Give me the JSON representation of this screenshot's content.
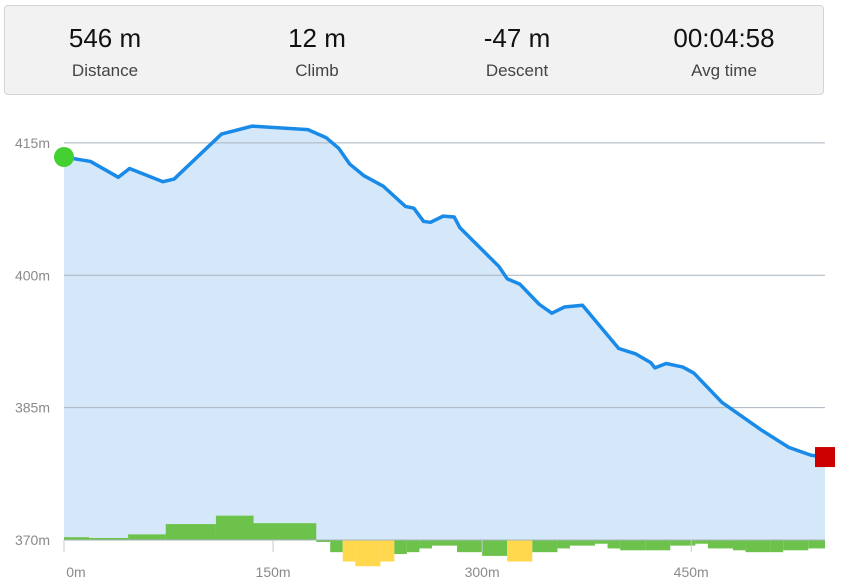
{
  "stats": [
    {
      "value": "546 m",
      "label": "Distance"
    },
    {
      "value": "12 m",
      "label": "Climb"
    },
    {
      "value": "-47 m",
      "label": "Descent"
    },
    {
      "value": "00:04:58",
      "label": "Avg time"
    }
  ],
  "chart_data": {
    "type": "area",
    "title": "",
    "xlabel": "",
    "ylabel": "",
    "xlim": [
      0,
      546
    ],
    "ylim": [
      370,
      418.5
    ],
    "x_ticks": [
      {
        "value": 0,
        "label": "0m"
      },
      {
        "value": 150,
        "label": "150m"
      },
      {
        "value": 300,
        "label": "300m"
      },
      {
        "value": 450,
        "label": "450m"
      }
    ],
    "y_ticks": [
      {
        "value": 415,
        "label": "415m"
      },
      {
        "value": 400,
        "label": "400m"
      },
      {
        "value": 385,
        "label": "385m"
      },
      {
        "value": 370,
        "label": "370m"
      }
    ],
    "grid": true,
    "series": [
      {
        "x": [
          0,
          19,
          39,
          47,
          71,
          79,
          113,
          135,
          175,
          188,
          197,
          205,
          215,
          229,
          245,
          251,
          258,
          263,
          272,
          280,
          284,
          312,
          318,
          327,
          341,
          350,
          359,
          372,
          398,
          410,
          421,
          424,
          432,
          444,
          452,
          472,
          500,
          520,
          536,
          546
        ],
        "y": [
          413.4,
          412.9,
          411.1,
          412.1,
          410.6,
          410.9,
          416.0,
          416.9,
          416.5,
          415.6,
          414.4,
          412.6,
          411.3,
          410.1,
          407.8,
          407.6,
          406.1,
          406.0,
          406.7,
          406.6,
          405.4,
          401.0,
          399.6,
          399.0,
          396.7,
          395.7,
          396.4,
          396.6,
          391.7,
          391.1,
          390.1,
          389.5,
          390.0,
          389.6,
          388.9,
          385.6,
          382.5,
          380.5,
          379.6,
          379.4
        ]
      }
    ],
    "start_marker_color": "#44d030",
    "end_marker_color": "#cc0000",
    "line_color": "#1a8ae8",
    "fill_color": "#d4e8fa",
    "slope_bars": [
      {
        "x0": 0,
        "x1": 18,
        "v": 0.3,
        "c": "green"
      },
      {
        "x0": 18,
        "x1": 46,
        "v": 0.2,
        "c": "green"
      },
      {
        "x0": 46,
        "x1": 73,
        "v": 0.6,
        "c": "green"
      },
      {
        "x0": 73,
        "x1": 109,
        "v": 1.7,
        "c": "green"
      },
      {
        "x0": 109,
        "x1": 136,
        "v": 2.6,
        "c": "green"
      },
      {
        "x0": 136,
        "x1": 181,
        "v": 1.8,
        "c": "green"
      },
      {
        "x0": 181,
        "x1": 191,
        "v": -0.2,
        "c": "green"
      },
      {
        "x0": 191,
        "x1": 200,
        "v": -1.3,
        "c": "green"
      },
      {
        "x0": 200,
        "x1": 209,
        "v": -2.3,
        "c": "yellow"
      },
      {
        "x0": 209,
        "x1": 227,
        "v": -2.8,
        "c": "yellow"
      },
      {
        "x0": 227,
        "x1": 237,
        "v": -2.3,
        "c": "yellow"
      },
      {
        "x0": 237,
        "x1": 246,
        "v": -1.5,
        "c": "green"
      },
      {
        "x0": 246,
        "x1": 255,
        "v": -1.3,
        "c": "green"
      },
      {
        "x0": 255,
        "x1": 264,
        "v": -0.9,
        "c": "green"
      },
      {
        "x0": 264,
        "x1": 282,
        "v": -0.6,
        "c": "green"
      },
      {
        "x0": 282,
        "x1": 300,
        "v": -1.3,
        "c": "green"
      },
      {
        "x0": 300,
        "x1": 318,
        "v": -1.7,
        "c": "green"
      },
      {
        "x0": 318,
        "x1": 336,
        "v": -2.3,
        "c": "yellow"
      },
      {
        "x0": 336,
        "x1": 354,
        "v": -1.3,
        "c": "green"
      },
      {
        "x0": 354,
        "x1": 363,
        "v": -0.9,
        "c": "green"
      },
      {
        "x0": 363,
        "x1": 381,
        "v": -0.6,
        "c": "green"
      },
      {
        "x0": 381,
        "x1": 390,
        "v": -0.4,
        "c": "green"
      },
      {
        "x0": 390,
        "x1": 399,
        "v": -0.9,
        "c": "green"
      },
      {
        "x0": 399,
        "x1": 417,
        "v": -1.1,
        "c": "green"
      },
      {
        "x0": 417,
        "x1": 435,
        "v": -1.1,
        "c": "green"
      },
      {
        "x0": 435,
        "x1": 453,
        "v": -0.6,
        "c": "green"
      },
      {
        "x0": 453,
        "x1": 462,
        "v": -0.4,
        "c": "green"
      },
      {
        "x0": 462,
        "x1": 480,
        "v": -0.9,
        "c": "green"
      },
      {
        "x0": 480,
        "x1": 489,
        "v": -1.1,
        "c": "green"
      },
      {
        "x0": 489,
        "x1": 507,
        "v": -1.3,
        "c": "green"
      },
      {
        "x0": 507,
        "x1": 516,
        "v": -1.3,
        "c": "green"
      },
      {
        "x0": 516,
        "x1": 534,
        "v": -1.1,
        "c": "green"
      },
      {
        "x0": 534,
        "x1": 546,
        "v": -0.9,
        "c": "green"
      }
    ],
    "slope_colors": {
      "green": "#6cc24a",
      "yellow": "#ffd84d"
    }
  }
}
